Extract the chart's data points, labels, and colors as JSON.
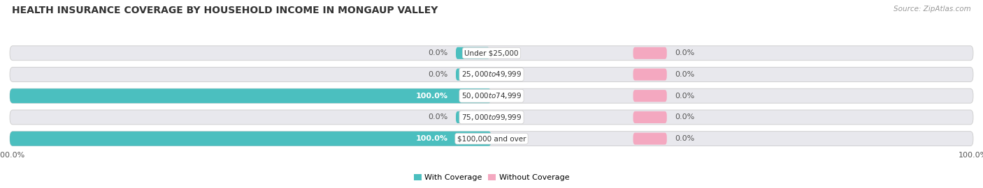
{
  "title": "HEALTH INSURANCE COVERAGE BY HOUSEHOLD INCOME IN MONGAUP VALLEY",
  "source": "Source: ZipAtlas.com",
  "categories": [
    "Under $25,000",
    "$25,000 to $49,999",
    "$50,000 to $74,999",
    "$75,000 to $99,999",
    "$100,000 and over"
  ],
  "with_coverage": [
    0.0,
    0.0,
    100.0,
    0.0,
    100.0
  ],
  "without_coverage": [
    0.0,
    0.0,
    0.0,
    0.0,
    0.0
  ],
  "color_with": "#4bbfbf",
  "color_without": "#f4a8c0",
  "color_bar_bg": "#e8e8ed",
  "background_color": "#ffffff",
  "legend_labels": [
    "With Coverage",
    "Without Coverage"
  ],
  "label_fontsize": 8.0,
  "title_fontsize": 10.0,
  "source_fontsize": 7.5
}
